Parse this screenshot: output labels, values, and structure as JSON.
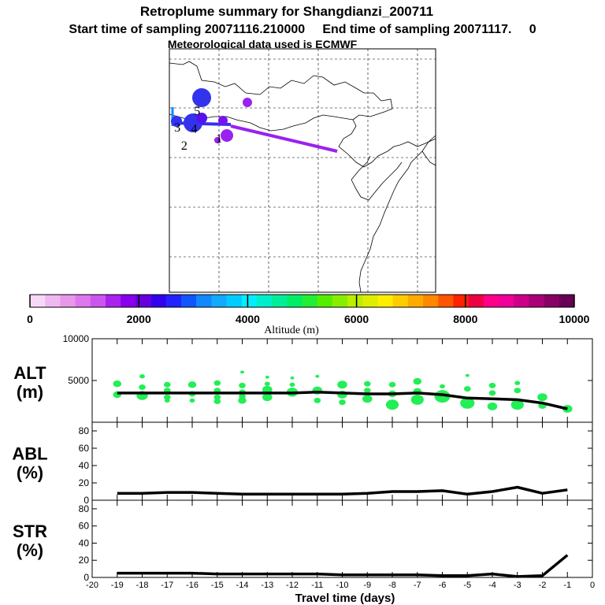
{
  "header": {
    "title": "Retroplume summary for Shangdianzi_200711",
    "sampling_line": "Start time of sampling 20071116.210000     End time of sampling 20071117.     0",
    "met_line": "Meteorological data used is ECMWF"
  },
  "colors": {
    "plume_blue": "#3333ee",
    "plume_purple": "#9922ee",
    "scatter_green": "#22ee55",
    "line_black": "#000000"
  },
  "chart_data": [
    {
      "type": "map",
      "name": "retroplume-map",
      "track_points": [
        {
          "label": "1",
          "lon": 130.0,
          "lat": 41.5
        },
        {
          "label": "2",
          "lon": 126.5,
          "lat": 40.8
        },
        {
          "label": "3",
          "lon": 125.8,
          "lat": 42.6
        },
        {
          "label": "4",
          "lon": 127.5,
          "lat": 42.5
        },
        {
          "label": "5",
          "lon": 127.8,
          "lat": 44.3
        }
      ]
    },
    {
      "type": "colorbar",
      "title": "Altitude (m)",
      "range": [
        0,
        10000
      ],
      "tick_labels": [
        "0",
        "2000",
        "4000",
        "6000",
        "8000",
        "10000"
      ],
      "colors": [
        "#f8d8f8",
        "#f0b8f0",
        "#e898e8",
        "#dd77ee",
        "#cc55ee",
        "#aa22ee",
        "#8800ee",
        "#6600dd",
        "#3300ee",
        "#2222ff",
        "#1155ff",
        "#1188ff",
        "#11aaff",
        "#00ccff",
        "#00eeff",
        "#00eecc",
        "#00ee99",
        "#00ee66",
        "#22ee33",
        "#55ee00",
        "#88ee00",
        "#bbee00",
        "#ddee00",
        "#ffee00",
        "#ffcc00",
        "#ffaa00",
        "#ff8800",
        "#ff5500",
        "#ff2200",
        "#ee0044",
        "#ff0088",
        "#ee0099",
        "#cc0088",
        "#aa0077",
        "#880066",
        "#660055"
      ]
    },
    {
      "type": "scatter+line",
      "name": "alt-panel",
      "ylabel": "ALT\n(m)",
      "ylabel_top": "ALT",
      "ylabel_bottom": "(m)",
      "ylim": [
        0,
        10000
      ],
      "yticks": [
        "10000",
        "5000"
      ],
      "line": {
        "x": [
          -19,
          -18,
          -17,
          -16,
          -15,
          -14,
          -13,
          -12,
          -11,
          -10,
          -9,
          -8,
          -7,
          -6,
          -5,
          -4,
          -3,
          -2,
          -1
        ],
        "y": [
          3500,
          3500,
          3500,
          3500,
          3500,
          3500,
          3500,
          3500,
          3600,
          3500,
          3400,
          3400,
          3500,
          3300,
          2900,
          2800,
          2700,
          2300,
          1600
        ]
      },
      "scatter": [
        {
          "x": -19,
          "y": 4600,
          "s": 4
        },
        {
          "x": -19,
          "y": 3300,
          "s": 4
        },
        {
          "x": -18,
          "y": 5500,
          "s": 2
        },
        {
          "x": -18,
          "y": 4200,
          "s": 3
        },
        {
          "x": -18,
          "y": 3200,
          "s": 6
        },
        {
          "x": -17,
          "y": 4500,
          "s": 3
        },
        {
          "x": -17,
          "y": 3800,
          "s": 3
        },
        {
          "x": -17,
          "y": 3000,
          "s": 3
        },
        {
          "x": -17,
          "y": 2600,
          "s": 2
        },
        {
          "x": -16,
          "y": 4500,
          "s": 4
        },
        {
          "x": -16,
          "y": 3400,
          "s": 3
        },
        {
          "x": -16,
          "y": 2600,
          "s": 2
        },
        {
          "x": -15,
          "y": 4700,
          "s": 3
        },
        {
          "x": -15,
          "y": 3800,
          "s": 3
        },
        {
          "x": -15,
          "y": 3000,
          "s": 3
        },
        {
          "x": -15,
          "y": 2500,
          "s": 3
        },
        {
          "x": -14,
          "y": 6000,
          "s": 1
        },
        {
          "x": -14,
          "y": 4400,
          "s": 3
        },
        {
          "x": -14,
          "y": 3600,
          "s": 3
        },
        {
          "x": -14,
          "y": 3100,
          "s": 3
        },
        {
          "x": -14,
          "y": 2600,
          "s": 4
        },
        {
          "x": -13,
          "y": 5400,
          "s": 1
        },
        {
          "x": -13,
          "y": 4600,
          "s": 2
        },
        {
          "x": -13,
          "y": 3900,
          "s": 5
        },
        {
          "x": -13,
          "y": 3000,
          "s": 5
        },
        {
          "x": -12,
          "y": 5300,
          "s": 1
        },
        {
          "x": -12,
          "y": 4500,
          "s": 2
        },
        {
          "x": -12,
          "y": 3600,
          "s": 6
        },
        {
          "x": -11,
          "y": 5500,
          "s": 1
        },
        {
          "x": -11,
          "y": 3800,
          "s": 5
        },
        {
          "x": -11,
          "y": 2600,
          "s": 3
        },
        {
          "x": -10,
          "y": 4500,
          "s": 5
        },
        {
          "x": -10,
          "y": 3300,
          "s": 5
        },
        {
          "x": -10,
          "y": 2400,
          "s": 3
        },
        {
          "x": -9,
          "y": 4600,
          "s": 3
        },
        {
          "x": -9,
          "y": 3800,
          "s": 3
        },
        {
          "x": -9,
          "y": 2800,
          "s": 5
        },
        {
          "x": -8,
          "y": 4500,
          "s": 3
        },
        {
          "x": -8,
          "y": 3400,
          "s": 4
        },
        {
          "x": -8,
          "y": 2100,
          "s": 7
        },
        {
          "x": -7,
          "y": 4900,
          "s": 4
        },
        {
          "x": -7,
          "y": 3700,
          "s": 4
        },
        {
          "x": -7,
          "y": 2700,
          "s": 7
        },
        {
          "x": -6,
          "y": 3100,
          "s": 9
        },
        {
          "x": -6,
          "y": 4300,
          "s": 2
        },
        {
          "x": -5,
          "y": 5600,
          "s": 1
        },
        {
          "x": -5,
          "y": 4000,
          "s": 3
        },
        {
          "x": -5,
          "y": 2300,
          "s": 8
        },
        {
          "x": -4,
          "y": 4400,
          "s": 3
        },
        {
          "x": -4,
          "y": 3500,
          "s": 3
        },
        {
          "x": -4,
          "y": 1900,
          "s": 5
        },
        {
          "x": -3,
          "y": 4700,
          "s": 2
        },
        {
          "x": -3,
          "y": 3800,
          "s": 3
        },
        {
          "x": -3,
          "y": 2100,
          "s": 7
        },
        {
          "x": -2,
          "y": 3000,
          "s": 5
        },
        {
          "x": -2,
          "y": 2000,
          "s": 4
        },
        {
          "x": -1,
          "y": 1600,
          "s": 5
        }
      ]
    },
    {
      "type": "line",
      "name": "abl-panel",
      "ylabel": "ABL\n(%)",
      "ylabel_top": "ABL",
      "ylabel_bottom": "(%)",
      "ylim": [
        0,
        90
      ],
      "yticks": [
        "80",
        "60",
        "40",
        "20",
        "0"
      ],
      "x": [
        -19,
        -18,
        -17,
        -16,
        -15,
        -14,
        -13,
        -12,
        -11,
        -10,
        -9,
        -8,
        -7,
        -6,
        -5,
        -4,
        -3,
        -2,
        -1
      ],
      "y": [
        8,
        8,
        9,
        9,
        8,
        7,
        7,
        7,
        7,
        7,
        8,
        10,
        10,
        11,
        7,
        10,
        15,
        8,
        12
      ]
    },
    {
      "type": "line",
      "name": "str-panel",
      "ylabel": "STR\n(%)",
      "ylabel_top": "STR",
      "ylabel_bottom": "(%)",
      "ylim": [
        0,
        90
      ],
      "yticks": [
        "80",
        "60",
        "40",
        "20",
        "0"
      ],
      "x": [
        -19,
        -18,
        -17,
        -16,
        -15,
        -14,
        -13,
        -12,
        -11,
        -10,
        -9,
        -8,
        -7,
        -6,
        -5,
        -4,
        -3,
        -2,
        -1
      ],
      "y": [
        5,
        5,
        5,
        5,
        4,
        4,
        4,
        4,
        4,
        3,
        3,
        3,
        3,
        2,
        2,
        4,
        1,
        2,
        26
      ],
      "xlabel": "Travel time (days)",
      "xlim": [
        -20,
        0
      ],
      "xtick_labels": [
        "-20",
        "-19",
        "-18",
        "-17",
        "-16",
        "-15",
        "-14",
        "-13",
        "-12",
        "-11",
        "-10",
        "-9",
        "-8",
        "-7",
        "-6",
        "-5",
        "-4",
        "-3",
        "-2",
        "-1",
        "0"
      ]
    }
  ]
}
